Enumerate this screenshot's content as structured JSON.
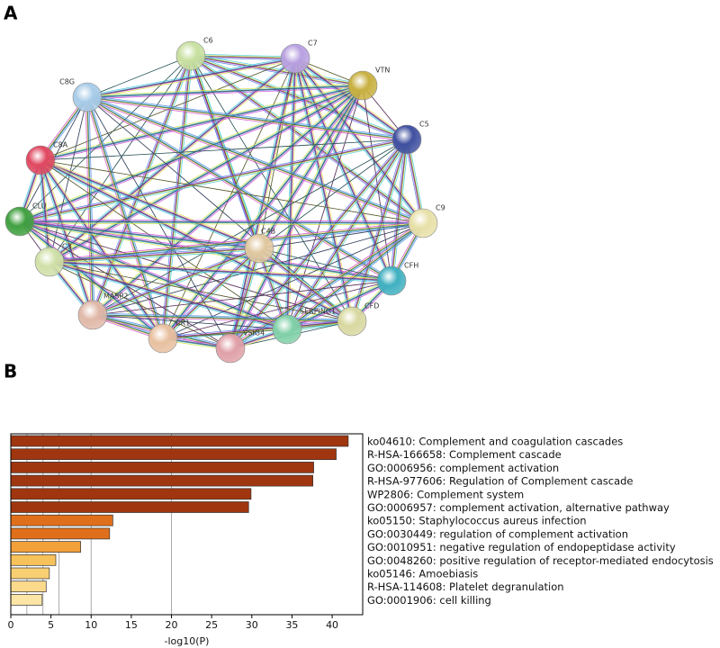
{
  "panel_labels": [
    "A",
    "B"
  ],
  "network": {
    "nodes": [
      {
        "label": "C6"
      },
      {
        "label": "C7"
      },
      {
        "label": "VTN"
      },
      {
        "label": "C8G"
      },
      {
        "label": "C5"
      },
      {
        "label": "C8A"
      },
      {
        "label": "CLU"
      },
      {
        "label": "C9"
      },
      {
        "label": "C4B"
      },
      {
        "label": "C3"
      },
      {
        "label": "CFH"
      },
      {
        "label": "MASP2"
      },
      {
        "label": "CFD"
      },
      {
        "label": "SERPING1"
      },
      {
        "label": "CR1"
      },
      {
        "label": "VSIG4"
      }
    ]
  },
  "chart_data": {
    "type": "barh",
    "categories": [
      "ko04610: Complement and coagulation cascades",
      "R-HSA-166658: Complement cascade",
      "GO:0006956: complement activation",
      "R-HSA-977606: Regulation of Complement cascade",
      "WP2806: Complement system",
      "GO:0006957: complement activation, alternative pathway",
      "ko05150: Staphylococcus aureus infection",
      "GO:0030449: regulation of complement activation",
      "GO:0010951: negative regulation of endopeptidase activity",
      "GO:0048260: positive regulation of receptor-mediated endocytosis",
      "ko05146: Amoebiasis",
      "R-HSA-114608: Platelet degranulation",
      "GO:0001906: cell killing"
    ],
    "values": [
      42.0,
      40.5,
      37.7,
      37.6,
      29.9,
      29.6,
      12.7,
      12.3,
      8.7,
      5.6,
      4.8,
      4.4,
      3.9
    ],
    "colors": [
      "#a0360f",
      "#a0360f",
      "#a0360f",
      "#a0360f",
      "#a0360f",
      "#a0360f",
      "#e06f1c",
      "#e06f1c",
      "#f2a03a",
      "#f8c25a",
      "#f9cf74",
      "#fbda8c",
      "#fde5a6"
    ],
    "xlabel": "-log10(P)",
    "xlim": [
      0,
      43.8
    ],
    "xticks": [
      0,
      5,
      10,
      15,
      20,
      25,
      30,
      35,
      40
    ],
    "vlines": [
      2,
      4,
      6,
      10,
      20
    ]
  }
}
